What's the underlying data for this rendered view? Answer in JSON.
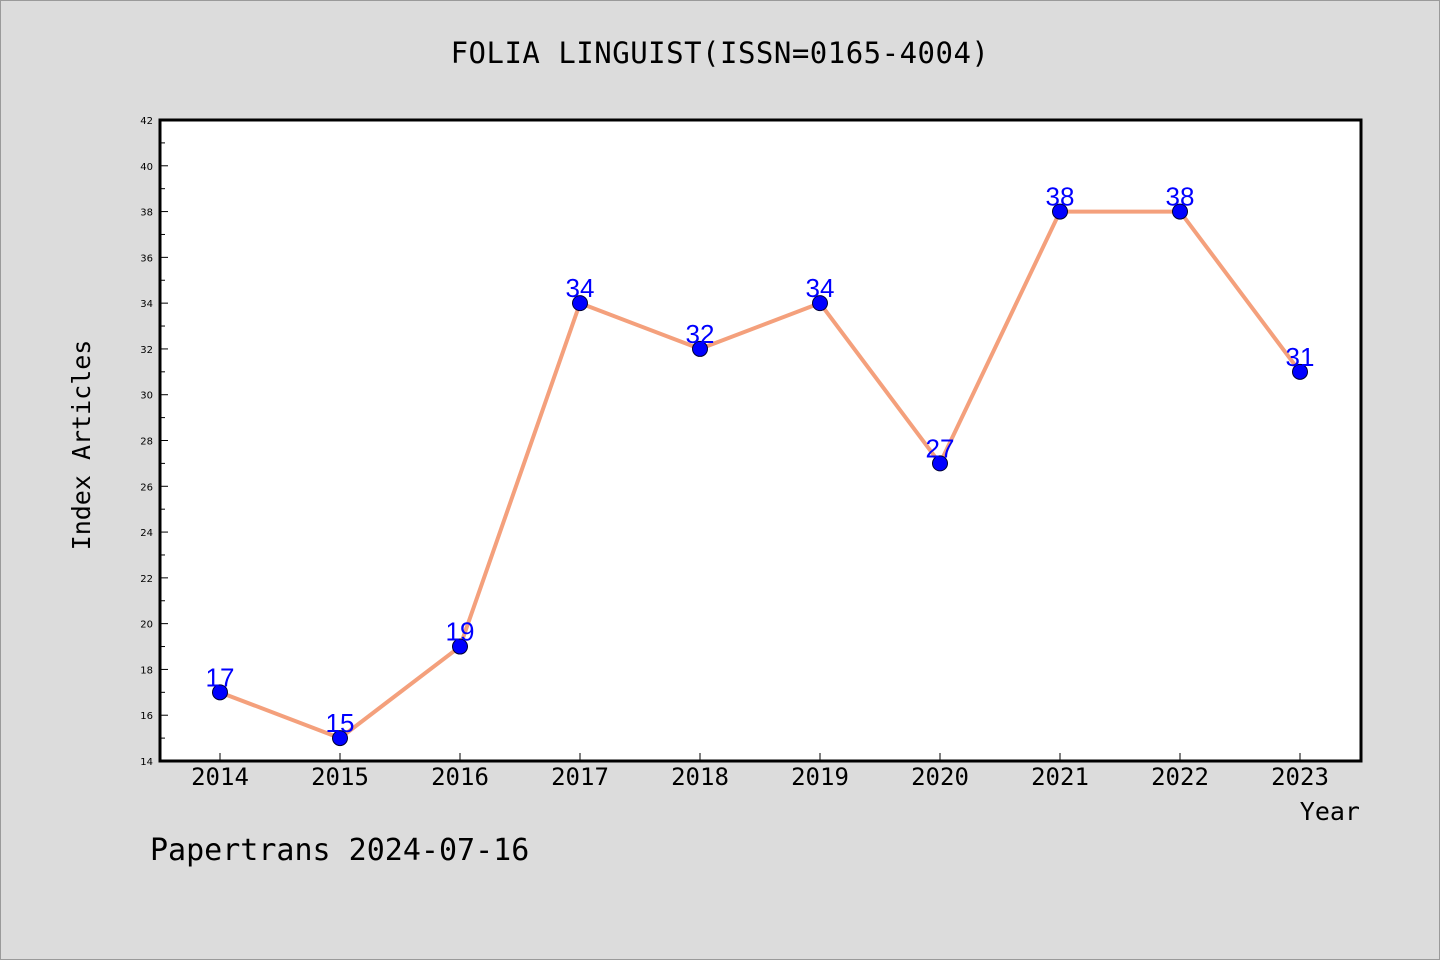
{
  "chart_data": {
    "type": "line",
    "title": "FOLIA LINGUIST(ISSN=0165-4004)",
    "xlabel": "Year",
    "ylabel": "Index Articles",
    "categories": [
      "2014",
      "2015",
      "2016",
      "2017",
      "2018",
      "2019",
      "2020",
      "2021",
      "2022",
      "2023"
    ],
    "series": [
      {
        "values": [
          17,
          15,
          19,
          34,
          32,
          34,
          27,
          38,
          38,
          31
        ],
        "line_color": "#f4a07c",
        "marker_color": "#0000ff"
      }
    ],
    "data_labels": [
      "17",
      "15",
      "19",
      "34",
      "32",
      "34",
      "27",
      "38",
      "38",
      "31"
    ],
    "ylim": [
      14,
      42
    ],
    "yticks": [
      "14",
      "16",
      "18",
      "20",
      "22",
      "24",
      "26",
      "28",
      "30",
      "32",
      "34",
      "36",
      "38",
      "40",
      "42"
    ],
    "grid": false,
    "legend": "none"
  },
  "footer": {
    "text": "Papertrans 2024-07-16"
  },
  "colors": {
    "background": "#dcdcdc",
    "plot_background": "#ffffff",
    "line": "#f4a07c",
    "marker": "#0000ff",
    "data_label": "#0000ff"
  }
}
